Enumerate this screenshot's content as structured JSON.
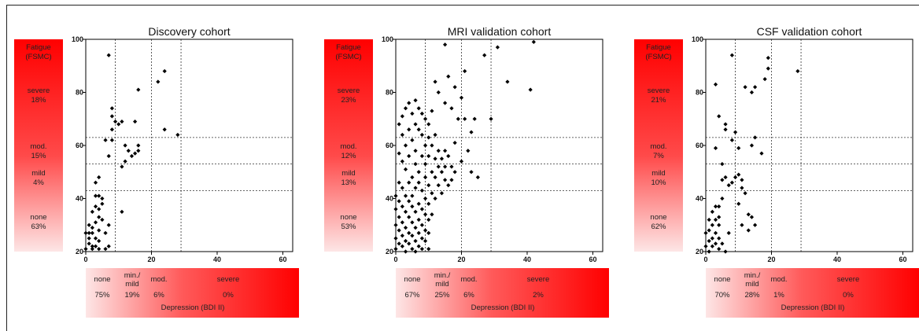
{
  "chart_data": [
    {
      "type": "scatter",
      "title": "Discovery cohort",
      "xlabel": "Depression (BDI II)",
      "ylabel": "Fatigue (FSMC)",
      "xlim": [
        0,
        63
      ],
      "ylim": [
        20,
        100
      ],
      "xticks": [
        "0",
        "20",
        "40",
        "60"
      ],
      "yticks": [
        "20",
        "40",
        "60",
        "80",
        "100"
      ],
      "fatigue_cutoffs": [
        43,
        53,
        63
      ],
      "depression_cutoffs": [
        9,
        20,
        29
      ],
      "fatigue_legend_title": [
        "Fatigue",
        "(FSMC)"
      ],
      "fatigue_legend": [
        {
          "label": "severe",
          "pct": "18%"
        },
        {
          "label": "mod.",
          "pct": "15%"
        },
        {
          "label": "mild",
          "pct": "4%"
        },
        {
          "label": "none",
          "pct": "63%"
        }
      ],
      "depression_legend": [
        {
          "label": "none",
          "pct": "75%"
        },
        {
          "label": "min./ mild",
          "pct": "19%"
        },
        {
          "label": "mod.",
          "pct": "6%"
        },
        {
          "label": "severe",
          "pct": "0%"
        }
      ],
      "points": [
        [
          7,
          94
        ],
        [
          8,
          74
        ],
        [
          8,
          71
        ],
        [
          9,
          69
        ],
        [
          11,
          69
        ],
        [
          8,
          66
        ],
        [
          10,
          68
        ],
        [
          6,
          62
        ],
        [
          8,
          62
        ],
        [
          7,
          56
        ],
        [
          16,
          81
        ],
        [
          22,
          84
        ],
        [
          24,
          88
        ],
        [
          24,
          66
        ],
        [
          28,
          64
        ],
        [
          12,
          60
        ],
        [
          13,
          58
        ],
        [
          15,
          69
        ],
        [
          16,
          58
        ],
        [
          16,
          60
        ],
        [
          14,
          56
        ],
        [
          15,
          57
        ],
        [
          12,
          54
        ],
        [
          11,
          52
        ],
        [
          4,
          48
        ],
        [
          3,
          46
        ],
        [
          4,
          41
        ],
        [
          3,
          41
        ],
        [
          5,
          40
        ],
        [
          5,
          38
        ],
        [
          3,
          37
        ],
        [
          4,
          36
        ],
        [
          2,
          35
        ],
        [
          4,
          33
        ],
        [
          5,
          32
        ],
        [
          3,
          31
        ],
        [
          1,
          30
        ],
        [
          2,
          29
        ],
        [
          4,
          28
        ],
        [
          1,
          27
        ],
        [
          2,
          27
        ],
        [
          6,
          27
        ],
        [
          7,
          30
        ],
        [
          0,
          27
        ],
        [
          1,
          25
        ],
        [
          3,
          25
        ],
        [
          4,
          24
        ],
        [
          1,
          23
        ],
        [
          2,
          22
        ],
        [
          3,
          22
        ],
        [
          0,
          21
        ],
        [
          2,
          21
        ],
        [
          4,
          21
        ],
        [
          6,
          21
        ],
        [
          7,
          22
        ],
        [
          11,
          35
        ]
      ]
    },
    {
      "type": "scatter",
      "title": "MRI validation cohort",
      "xlabel": "Depression (BDI II)",
      "ylabel": "Fatigue (FSMC)",
      "xlim": [
        0,
        63
      ],
      "ylim": [
        20,
        100
      ],
      "xticks": [
        "0",
        "20",
        "40",
        "60"
      ],
      "yticks": [
        "20",
        "40",
        "60",
        "80",
        "100"
      ],
      "fatigue_cutoffs": [
        43,
        53,
        63
      ],
      "depression_cutoffs": [
        9,
        20,
        29
      ],
      "fatigue_legend_title": [
        "Fatigue",
        "(FSMC)"
      ],
      "fatigue_legend": [
        {
          "label": "severe",
          "pct": "23%"
        },
        {
          "label": "mod.",
          "pct": "12%"
        },
        {
          "label": "mild",
          "pct": "13%"
        },
        {
          "label": "none",
          "pct": "53%"
        }
      ],
      "depression_legend": [
        {
          "label": "none",
          "pct": "67%"
        },
        {
          "label": "min./ mild",
          "pct": "25%"
        },
        {
          "label": "mod.",
          "pct": "6%"
        },
        {
          "label": "severe",
          "pct": "2%"
        }
      ],
      "points": [
        [
          15,
          98
        ],
        [
          27,
          94
        ],
        [
          31,
          97
        ],
        [
          42,
          99
        ],
        [
          21,
          88
        ],
        [
          34,
          84
        ],
        [
          41,
          81
        ],
        [
          16,
          86
        ],
        [
          12,
          84
        ],
        [
          18,
          82
        ],
        [
          20,
          78
        ],
        [
          13,
          80
        ],
        [
          15,
          76
        ],
        [
          11,
          73
        ],
        [
          17,
          74
        ],
        [
          19,
          70
        ],
        [
          21,
          70
        ],
        [
          24,
          70
        ],
        [
          29,
          70
        ],
        [
          23,
          65
        ],
        [
          22,
          58
        ],
        [
          23,
          50
        ],
        [
          25,
          48
        ],
        [
          20,
          54
        ],
        [
          18,
          61
        ],
        [
          6,
          77
        ],
        [
          4,
          76
        ],
        [
          7,
          74
        ],
        [
          3,
          74
        ],
        [
          5,
          72
        ],
        [
          2,
          71
        ],
        [
          8,
          72
        ],
        [
          9,
          70
        ],
        [
          1,
          68
        ],
        [
          6,
          68
        ],
        [
          10,
          68
        ],
        [
          4,
          66
        ],
        [
          7,
          66
        ],
        [
          2,
          64
        ],
        [
          8,
          64
        ],
        [
          10,
          63
        ],
        [
          12,
          64
        ],
        [
          5,
          62
        ],
        [
          3,
          60
        ],
        [
          9,
          60
        ],
        [
          11,
          60
        ],
        [
          6,
          58
        ],
        [
          13,
          58
        ],
        [
          15,
          58
        ],
        [
          1,
          57
        ],
        [
          4,
          56
        ],
        [
          8,
          56
        ],
        [
          10,
          56
        ],
        [
          12,
          55
        ],
        [
          14,
          55
        ],
        [
          16,
          56
        ],
        [
          2,
          54
        ],
        [
          6,
          53
        ],
        [
          9,
          53
        ],
        [
          13,
          52
        ],
        [
          15,
          52
        ],
        [
          17,
          52
        ],
        [
          3,
          51
        ],
        [
          7,
          50
        ],
        [
          11,
          50
        ],
        [
          14,
          50
        ],
        [
          18,
          50
        ],
        [
          5,
          48
        ],
        [
          9,
          48
        ],
        [
          12,
          48
        ],
        [
          15,
          47
        ],
        [
          17,
          47
        ],
        [
          1,
          46
        ],
        [
          4,
          46
        ],
        [
          7,
          46
        ],
        [
          10,
          45
        ],
        [
          13,
          45
        ],
        [
          16,
          45
        ],
        [
          2,
          44
        ],
        [
          6,
          44
        ],
        [
          8,
          43
        ],
        [
          11,
          42
        ],
        [
          14,
          42
        ],
        [
          0,
          41
        ],
        [
          3,
          41
        ],
        [
          5,
          41
        ],
        [
          9,
          40
        ],
        [
          12,
          40
        ],
        [
          1,
          39
        ],
        [
          4,
          39
        ],
        [
          7,
          38
        ],
        [
          10,
          38
        ],
        [
          2,
          37
        ],
        [
          5,
          37
        ],
        [
          8,
          36
        ],
        [
          0,
          36
        ],
        [
          3,
          35
        ],
        [
          6,
          35
        ],
        [
          9,
          34
        ],
        [
          11,
          34
        ],
        [
          1,
          33
        ],
        [
          4,
          33
        ],
        [
          7,
          32
        ],
        [
          10,
          32
        ],
        [
          2,
          31
        ],
        [
          5,
          31
        ],
        [
          8,
          30
        ],
        [
          0,
          30
        ],
        [
          3,
          29
        ],
        [
          6,
          29
        ],
        [
          9,
          28
        ],
        [
          1,
          28
        ],
        [
          4,
          27
        ],
        [
          7,
          27
        ],
        [
          10,
          27
        ],
        [
          2,
          26
        ],
        [
          5,
          26
        ],
        [
          8,
          25
        ],
        [
          0,
          25
        ],
        [
          3,
          24
        ],
        [
          6,
          24
        ],
        [
          9,
          24
        ],
        [
          1,
          23
        ],
        [
          4,
          23
        ],
        [
          7,
          22
        ],
        [
          2,
          22
        ],
        [
          5,
          21
        ],
        [
          8,
          21
        ],
        [
          0,
          21
        ],
        [
          3,
          20
        ],
        [
          6,
          20
        ],
        [
          10,
          21
        ]
      ]
    },
    {
      "type": "scatter",
      "title": "CSF validation cohort",
      "xlabel": "Depression (BDI II)",
      "ylabel": "Fatigue (FSMC)",
      "xlim": [
        0,
        63
      ],
      "ylim": [
        20,
        100
      ],
      "xticks": [
        "0",
        "20",
        "40",
        "60"
      ],
      "yticks": [
        "20",
        "40",
        "60",
        "80",
        "100"
      ],
      "fatigue_cutoffs": [
        43,
        53,
        63
      ],
      "depression_cutoffs": [
        9,
        20,
        29
      ],
      "fatigue_legend_title": [
        "Fatigue",
        "(FSMC)"
      ],
      "fatigue_legend": [
        {
          "label": "severe",
          "pct": "21%"
        },
        {
          "label": "mod.",
          "pct": "7%"
        },
        {
          "label": "mild",
          "pct": "10%"
        },
        {
          "label": "none",
          "pct": "62%"
        }
      ],
      "depression_legend": [
        {
          "label": "none",
          "pct": "70%"
        },
        {
          "label": "min./ mild",
          "pct": "28%"
        },
        {
          "label": "mod.",
          "pct": "1%"
        },
        {
          "label": "severe",
          "pct": "0%"
        }
      ],
      "points": [
        [
          8,
          94
        ],
        [
          19,
          93
        ],
        [
          19,
          89
        ],
        [
          18,
          85
        ],
        [
          28,
          88
        ],
        [
          3,
          83
        ],
        [
          12,
          82
        ],
        [
          15,
          82
        ],
        [
          14,
          80
        ],
        [
          4,
          71
        ],
        [
          6,
          68
        ],
        [
          9,
          65
        ],
        [
          15,
          63
        ],
        [
          14,
          60
        ],
        [
          10,
          59
        ],
        [
          17,
          57
        ],
        [
          3,
          59
        ],
        [
          6,
          66
        ],
        [
          8,
          62
        ],
        [
          5,
          53
        ],
        [
          5,
          47
        ],
        [
          6,
          48
        ],
        [
          7,
          45
        ],
        [
          8,
          46
        ],
        [
          9,
          48
        ],
        [
          10,
          49
        ],
        [
          11,
          47
        ],
        [
          11,
          44
        ],
        [
          12,
          42
        ],
        [
          13,
          34
        ],
        [
          14,
          33
        ],
        [
          15,
          30
        ],
        [
          13,
          28
        ],
        [
          5,
          40
        ],
        [
          4,
          37
        ],
        [
          3,
          37
        ],
        [
          2,
          35
        ],
        [
          4,
          33
        ],
        [
          3,
          32
        ],
        [
          1,
          32
        ],
        [
          2,
          30
        ],
        [
          4,
          30
        ],
        [
          1,
          28
        ],
        [
          3,
          27
        ],
        [
          0,
          27
        ],
        [
          2,
          25
        ],
        [
          4,
          25
        ],
        [
          1,
          24
        ],
        [
          3,
          23
        ],
        [
          5,
          23
        ],
        [
          2,
          22
        ],
        [
          0,
          22
        ],
        [
          4,
          21
        ],
        [
          6,
          20
        ],
        [
          1,
          20
        ],
        [
          7,
          27
        ],
        [
          10,
          38
        ],
        [
          11,
          30
        ]
      ]
    }
  ],
  "colors": {
    "red": "#ff0000",
    "light_pink": "#fde6e6",
    "point": "#000000",
    "cutoff_line": "#333333"
  }
}
